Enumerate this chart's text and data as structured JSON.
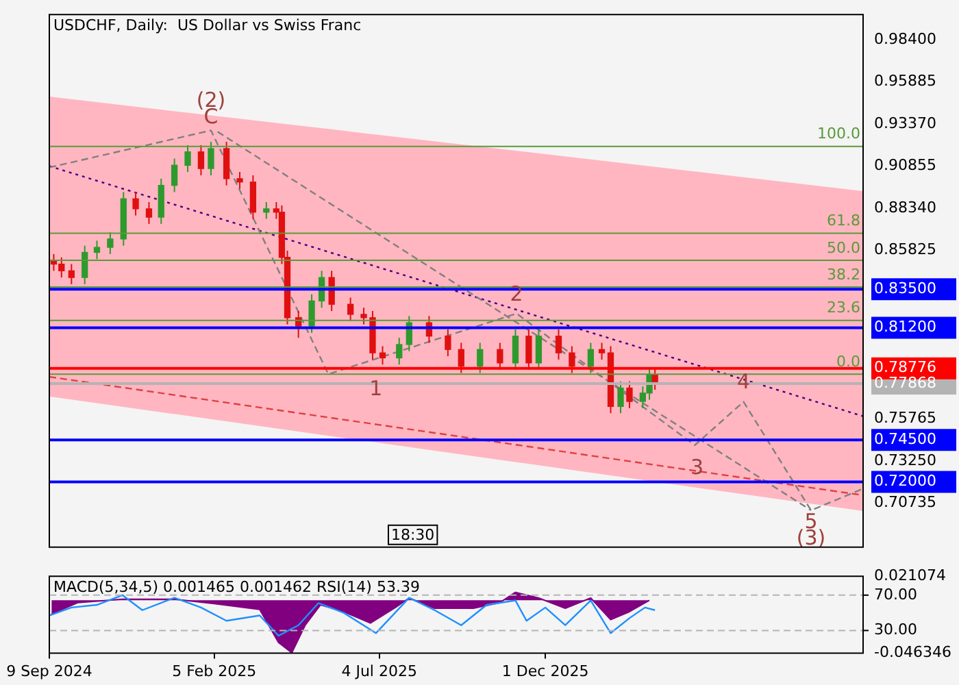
{
  "chart_data": [
    {
      "type": "candlestick",
      "title": "USDCHF, Daily:  US Dollar vs Swiss Franc",
      "tick_labels": "y",
      "grid": false,
      "legend": false,
      "xlim": [
        "2024-09-09",
        "2026-09-14"
      ],
      "ylim": [
        0.681,
        0.999
      ],
      "yticks": [
        {
          "value": 0.70735,
          "label": "0.70735"
        },
        {
          "value": 0.72,
          "label": "0.72000"
        },
        {
          "value": 0.7325,
          "label": "0.73250"
        },
        {
          "value": 0.745,
          "label": "0.74500"
        },
        {
          "value": 0.75765,
          "label": "0.75765"
        },
        {
          "value": 0.77868,
          "label": "0.77868"
        },
        {
          "value": 0.78776,
          "label": "0.78776"
        },
        {
          "value": 0.812,
          "label": "0.81200"
        },
        {
          "value": 0.835,
          "label": "0.83500"
        },
        {
          "value": 0.85825,
          "label": "0.85825"
        },
        {
          "value": 0.8834,
          "label": "0.88340"
        },
        {
          "value": 0.90855,
          "label": "0.90855"
        },
        {
          "value": 0.9337,
          "label": "0.93370"
        },
        {
          "value": 0.95885,
          "label": "0.95885"
        },
        {
          "value": 0.984,
          "label": "0.98400"
        }
      ],
      "x": [
        "2024-09-13",
        "2024-09-20",
        "2024-09-29",
        "2024-10-11",
        "2024-10-22",
        "2024-11-03",
        "2024-11-15",
        "2024-11-26",
        "2024-12-08",
        "2024-12-19",
        "2024-12-31",
        "2025-01-12",
        "2025-01-24",
        "2025-02-02",
        "2025-02-16",
        "2025-02-28",
        "2025-03-12",
        "2025-03-24",
        "2025-04-02",
        "2025-04-07",
        "2025-04-12",
        "2025-04-22",
        "2025-05-04",
        "2025-05-13",
        "2025-05-22",
        "2025-06-08",
        "2025-06-20",
        "2025-06-28",
        "2025-07-07",
        "2025-07-22",
        "2025-07-31",
        "2025-08-18",
        "2025-09-04",
        "2025-09-16",
        "2025-10-03",
        "2025-10-21",
        "2025-11-04",
        "2025-11-16",
        "2025-11-25",
        "2025-12-13",
        "2025-12-25",
        "2026-01-11",
        "2026-01-21",
        "2026-01-29",
        "2026-02-07",
        "2026-02-15",
        "2026-02-27",
        "2026-03-05",
        "2026-03-10"
      ],
      "ohlc": [
        [
          0.852,
          0.856,
          0.846,
          0.85
        ],
        [
          0.85,
          0.854,
          0.842,
          0.846
        ],
        [
          0.846,
          0.85,
          0.838,
          0.842
        ],
        [
          0.842,
          0.861,
          0.838,
          0.857
        ],
        [
          0.857,
          0.864,
          0.853,
          0.86
        ],
        [
          0.86,
          0.869,
          0.856,
          0.865
        ],
        [
          0.865,
          0.893,
          0.861,
          0.889
        ],
        [
          0.889,
          0.893,
          0.879,
          0.883
        ],
        [
          0.883,
          0.887,
          0.874,
          0.878
        ],
        [
          0.878,
          0.901,
          0.874,
          0.897
        ],
        [
          0.897,
          0.913,
          0.893,
          0.909
        ],
        [
          0.909,
          0.921,
          0.905,
          0.917
        ],
        [
          0.917,
          0.921,
          0.903,
          0.907
        ],
        [
          0.907,
          0.923,
          0.903,
          0.919
        ],
        [
          0.919,
          0.923,
          0.897,
          0.901
        ],
        [
          0.901,
          0.905,
          0.895,
          0.899
        ],
        [
          0.899,
          0.903,
          0.877,
          0.881
        ],
        [
          0.881,
          0.887,
          0.877,
          0.883
        ],
        [
          0.883,
          0.887,
          0.877,
          0.881
        ],
        [
          0.881,
          0.885,
          0.85,
          0.854
        ],
        [
          0.854,
          0.858,
          0.814,
          0.818
        ],
        [
          0.818,
          0.822,
          0.806,
          0.813
        ],
        [
          0.813,
          0.832,
          0.809,
          0.828
        ],
        [
          0.828,
          0.846,
          0.824,
          0.842
        ],
        [
          0.842,
          0.846,
          0.822,
          0.826
        ],
        [
          0.826,
          0.83,
          0.816,
          0.82
        ],
        [
          0.82,
          0.824,
          0.814,
          0.818
        ],
        [
          0.818,
          0.822,
          0.793,
          0.797
        ],
        [
          0.797,
          0.801,
          0.79,
          0.794
        ],
        [
          0.794,
          0.806,
          0.79,
          0.802
        ],
        [
          0.802,
          0.819,
          0.798,
          0.815
        ],
        [
          0.815,
          0.819,
          0.803,
          0.807
        ],
        [
          0.807,
          0.811,
          0.795,
          0.799
        ],
        [
          0.799,
          0.803,
          0.785,
          0.789
        ],
        [
          0.789,
          0.803,
          0.785,
          0.799
        ],
        [
          0.799,
          0.803,
          0.787,
          0.791
        ],
        [
          0.791,
          0.811,
          0.787,
          0.807
        ],
        [
          0.807,
          0.811,
          0.787,
          0.791
        ],
        [
          0.791,
          0.811,
          0.787,
          0.807
        ],
        [
          0.807,
          0.811,
          0.793,
          0.797
        ],
        [
          0.797,
          0.801,
          0.785,
          0.789
        ],
        [
          0.789,
          0.803,
          0.785,
          0.799
        ],
        [
          0.799,
          0.803,
          0.793,
          0.797
        ],
        [
          0.797,
          0.801,
          0.761,
          0.765
        ],
        [
          0.765,
          0.78,
          0.761,
          0.776
        ],
        [
          0.776,
          0.78,
          0.764,
          0.768
        ],
        [
          0.768,
          0.777,
          0.764,
          0.773
        ],
        [
          0.773,
          0.788,
          0.769,
          0.784
        ],
        [
          0.784,
          0.788,
          0.775,
          0.779
        ]
      ],
      "series": [
        {
          "type": "area",
          "color": "#ffb6c1",
          "x": [
            "2024-09-09",
            "2026-09-14"
          ],
          "values": [
            null,
            null
          ],
          "lower": [
            0.771,
            0.7026
          ],
          "upper": [
            0.95,
            0.8936
          ]
        },
        {
          "type": "line",
          "color": "#4b0082",
          "line_style": "dotted",
          "x": [
            "2024-09-09",
            "2026-09-14"
          ],
          "values": [
            0.9085,
            0.7592
          ]
        },
        {
          "type": "line",
          "color": "#e04040",
          "line_style": "dashed",
          "x": [
            "2024-09-09",
            "2026-09-14"
          ],
          "values": [
            0.7827,
            0.712
          ]
        },
        {
          "type": "line",
          "color": "#808080",
          "line_style": "dashed",
          "x": [
            "2024-09-09",
            "2025-02-02",
            "2025-05-19",
            "2025-11-05",
            "2026-04-15",
            "2026-05-29",
            "2026-07-29",
            "2026-09-14"
          ],
          "values": [
            0.9077,
            0.9298,
            0.7843,
            0.8205,
            0.7419,
            0.7678,
            0.703,
            0.7159
          ]
        },
        {
          "type": "line",
          "color": "#808080",
          "line_style": "dashed",
          "x": [
            "2025-02-08",
            "2026-07-29"
          ],
          "values": [
            0.929,
            0.703
          ]
        }
      ],
      "ref_lines": [
        {
          "axis": "y",
          "value": 0.835,
          "color": "#0000ff"
        },
        {
          "axis": "y",
          "value": 0.812,
          "color": "#0000ff"
        },
        {
          "axis": "y",
          "value": 0.745,
          "color": "#0000ff"
        },
        {
          "axis": "y",
          "value": 0.72,
          "color": "#0000ff"
        },
        {
          "axis": "y",
          "value": 0.78776,
          "color": "#ff0000"
        },
        {
          "axis": "y",
          "value": 0.77868,
          "color": "#b4b4b4"
        },
        {
          "axis": "y",
          "value": 0.9203,
          "color": "#5a9a3a"
        },
        {
          "axis": "y",
          "value": 0.8684,
          "color": "#5a9a3a"
        },
        {
          "axis": "y",
          "value": 0.8523,
          "color": "#5a9a3a"
        },
        {
          "axis": "y",
          "value": 0.8363,
          "color": "#5a9a3a"
        },
        {
          "axis": "y",
          "value": 0.8164,
          "color": "#5a9a3a"
        },
        {
          "axis": "y",
          "value": 0.7843,
          "color": "#5a9a3a"
        }
      ],
      "annotations": [
        {
          "text": "100.0",
          "x": "2026-09-14",
          "y": 0.9203
        },
        {
          "text": "61.8",
          "x": "2026-09-14",
          "y": 0.8684
        },
        {
          "text": "50.0",
          "x": "2026-09-14",
          "y": 0.8523
        },
        {
          "text": "38.2",
          "x": "2026-09-14",
          "y": 0.8363
        },
        {
          "text": "23.6",
          "x": "2026-09-14",
          "y": 0.8164
        },
        {
          "text": "0.0",
          "x": "2026-09-14",
          "y": 0.7843
        },
        {
          "text": "C",
          "x": "2025-02-02",
          "y": 0.9298
        },
        {
          "text": "(2)",
          "x": "2025-02-02",
          "y": 0.9298
        },
        {
          "text": "1",
          "x": "2025-07-01",
          "y": 0.7749
        },
        {
          "text": "2",
          "x": "2025-11-05",
          "y": 0.8315
        },
        {
          "text": "3",
          "x": "2026-04-17",
          "y": 0.7277
        },
        {
          "text": "4",
          "x": "2026-05-29",
          "y": 0.7788
        },
        {
          "text": "5",
          "x": "2026-07-29",
          "y": 0.703
        },
        {
          "text": "(3)",
          "x": "2026-07-29",
          "y": 0.703
        },
        "18:30"
      ]
    },
    {
      "type": "area",
      "title": "MACD(5,34,5) 0.001465 0.001462 RSI(14) 53.39",
      "grid": false,
      "legend": false,
      "xlim": [
        "2024-09-09",
        "2026-09-14"
      ],
      "xticks": [
        {
          "value": "2024-09-09",
          "label": "9 Sep 2024"
        },
        {
          "value": "2025-02-05",
          "label": "5 Feb 2025"
        },
        {
          "value": "2025-07-04",
          "label": "4 Jul 2025"
        },
        {
          "value": "2025-12-01",
          "label": "1 Dec 2025"
        }
      ],
      "ylim": [
        -0.046346,
        0.021074
      ],
      "yticks": [
        -0.046346,
        0.021074
      ],
      "y2lim": [
        4.3,
        91.4
      ],
      "y2ticks": [
        {
          "value": 30,
          "label": "30.00"
        },
        {
          "value": 70,
          "label": "70.00"
        }
      ],
      "ref_lines": [
        {
          "axis": "y2",
          "value": 70,
          "color": "#b4b4b4",
          "line_style": "dashed"
        },
        {
          "axis": "y2",
          "value": 30,
          "color": "#b4b4b4",
          "line_style": "dashed"
        }
      ],
      "series": [
        {
          "type": "area",
          "color": "#800080",
          "x": [
            "2024-09-11",
            "2024-10-05",
            "2024-11-14",
            "2024-12-31",
            "2025-02-05",
            "2025-03-18",
            "2025-04-04",
            "2025-04-16",
            "2025-04-28",
            "2025-05-12",
            "2025-06-02",
            "2025-06-26",
            "2025-07-19",
            "2025-07-31",
            "2025-08-23",
            "2025-09-27",
            "2025-10-21",
            "2025-11-04",
            "2025-11-25",
            "2025-12-19",
            "2026-01-11",
            "2026-01-29",
            "2026-02-15",
            "2026-03-05"
          ],
          "values": [
            -0.012,
            -0.002,
            0.001,
            0.001,
            -0.003,
            -0.008,
            -0.037,
            -0.046,
            -0.022,
            -0.004,
            -0.01,
            -0.02,
            -0.006,
            0.002,
            -0.007,
            -0.007,
            -0.002,
            0.007,
            0.002,
            -0.007,
            0.002,
            -0.017,
            -0.01,
            0
          ]
        },
        {
          "type": "line",
          "axis": "y2",
          "color": "#1e90ff",
          "x": [
            "2024-09-09",
            "2024-09-29",
            "2024-10-22",
            "2024-11-14",
            "2024-12-02",
            "2024-12-31",
            "2025-01-24",
            "2025-02-16",
            "2025-03-18",
            "2025-04-04",
            "2025-04-22",
            "2025-05-10",
            "2025-06-02",
            "2025-07-01",
            "2025-07-31",
            "2025-08-23",
            "2025-09-16",
            "2025-10-09",
            "2025-11-04",
            "2025-11-14",
            "2025-12-01",
            "2025-12-19",
            "2026-01-11",
            "2026-01-29",
            "2026-02-15",
            "2026-03-01",
            "2026-03-10"
          ],
          "values": [
            47,
            56,
            59,
            70,
            53,
            67,
            56,
            41,
            47,
            24,
            36,
            61,
            50,
            27,
            67,
            53,
            36,
            59,
            64,
            41,
            56,
            36,
            64,
            27,
            44,
            56,
            53
          ]
        }
      ]
    }
  ]
}
